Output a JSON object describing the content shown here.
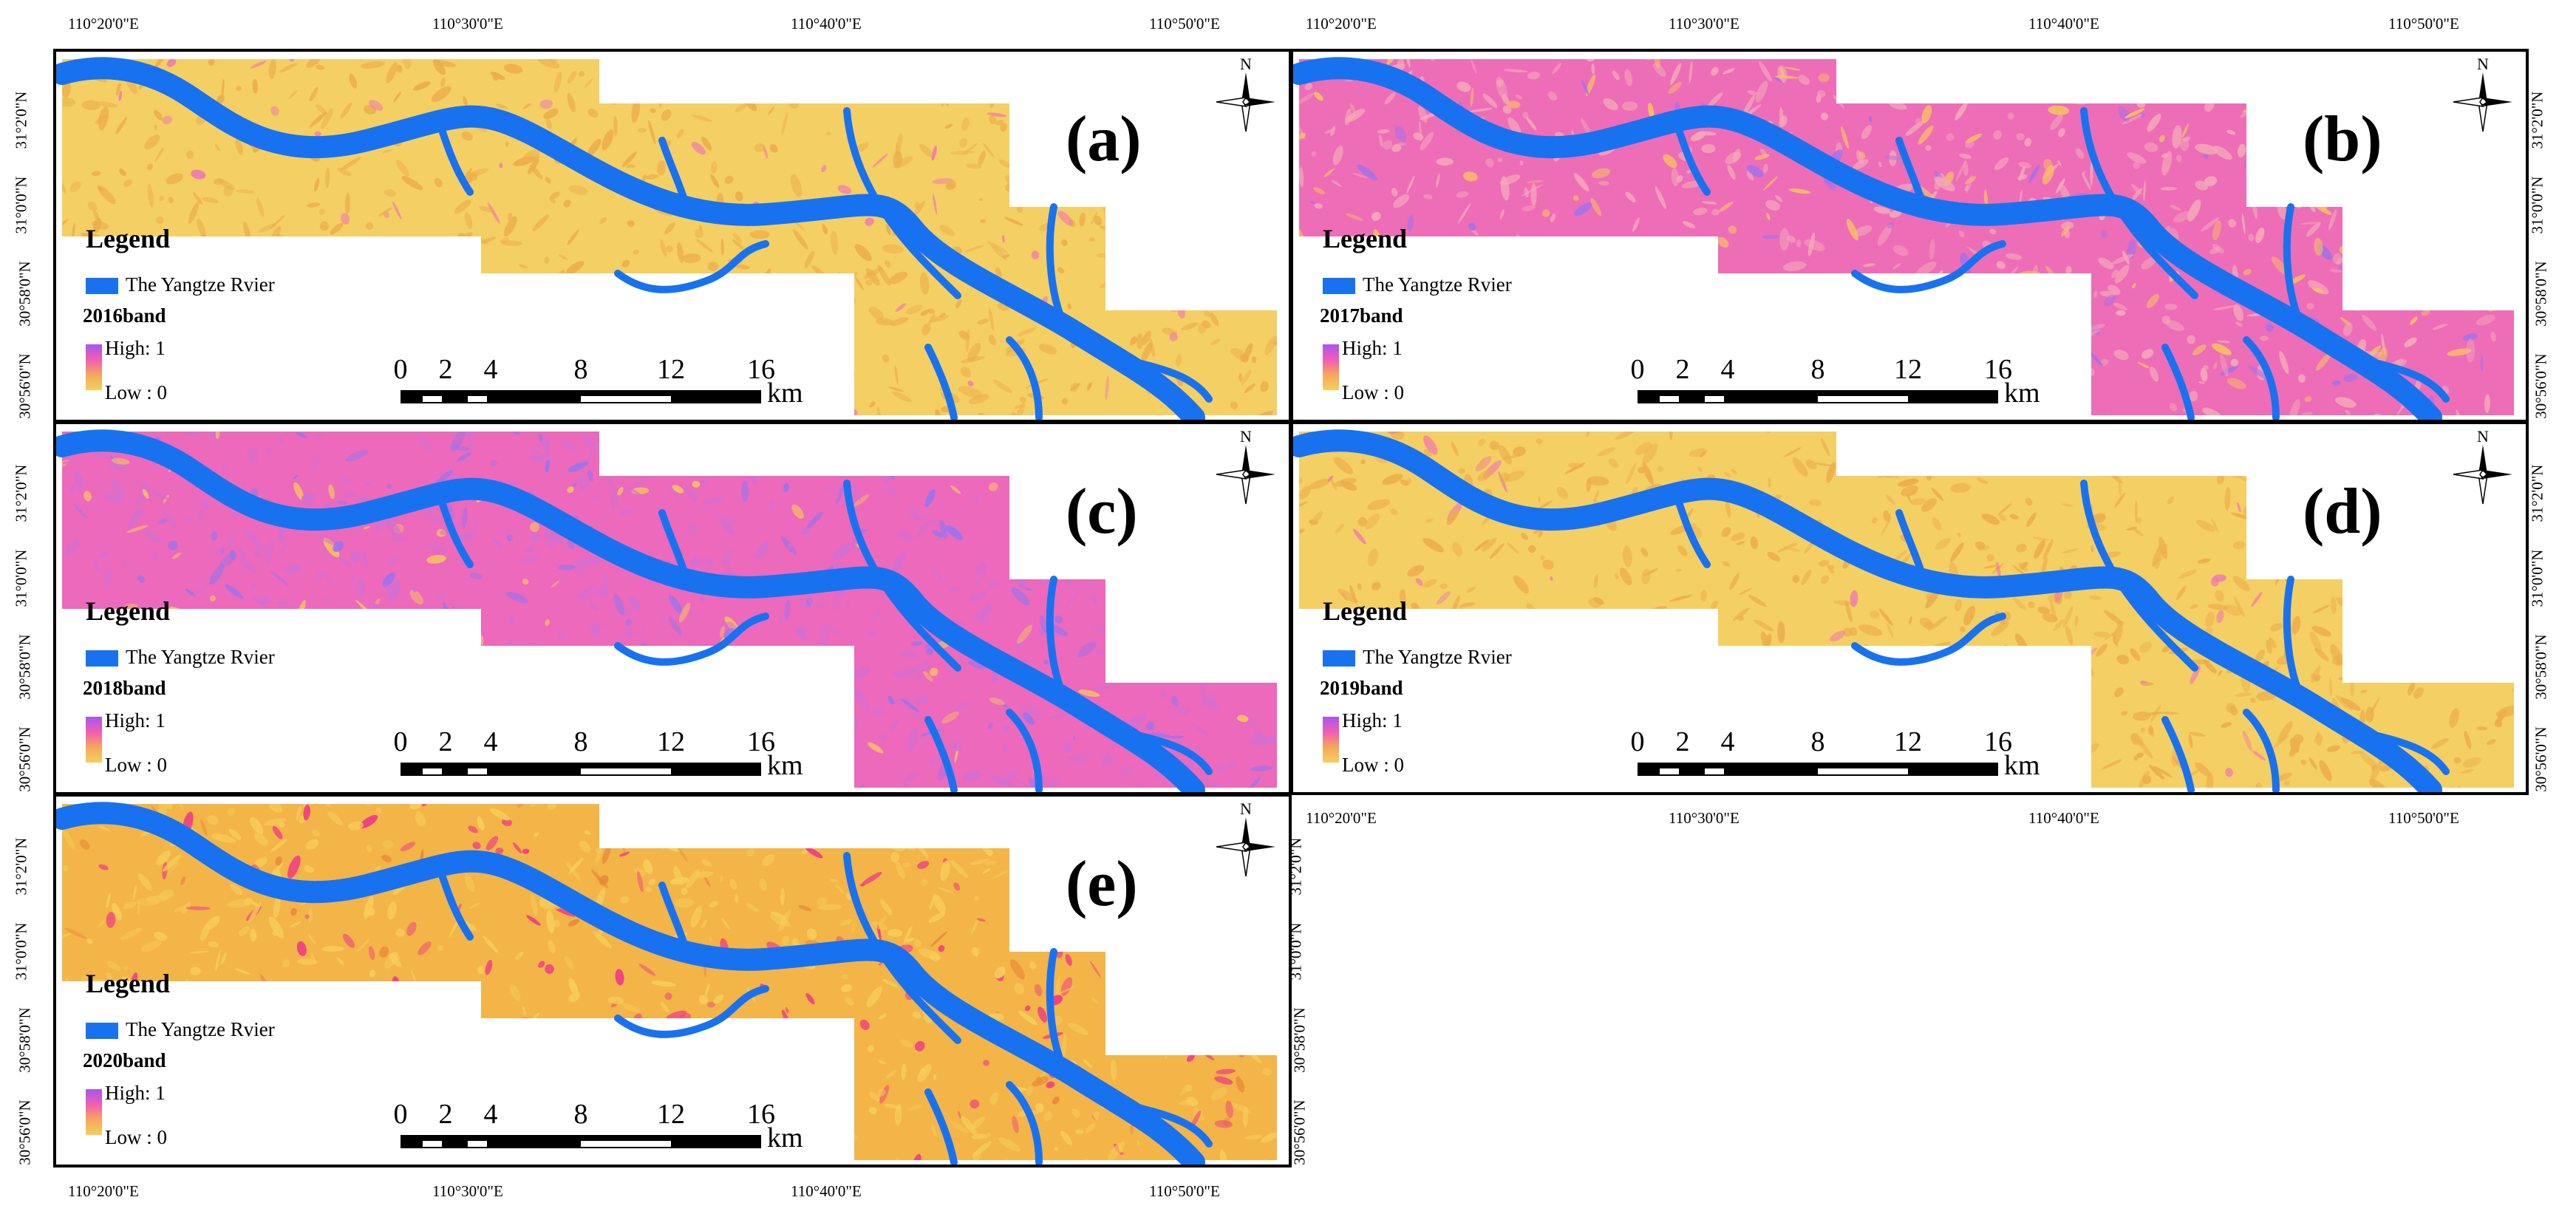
{
  "longitude_labels": [
    "110°20'0\"E",
    "110°30'0\"E",
    "110°40'0\"E",
    "110°50'0\"E"
  ],
  "latitude_labels": [
    "31°2'0\"N",
    "31°0'0\"N",
    "30°58'0\"N",
    "30°56'0\"N"
  ],
  "legend": {
    "title": "Legend",
    "river_label": "The Yangtze Rvier",
    "high_label": "High: 1",
    "low_label": "Low : 0"
  },
  "scale_bar": {
    "ticks": [
      "0",
      "2",
      "4",
      "8",
      "12",
      "16"
    ],
    "unit": "km"
  },
  "north_arrow_label": "N",
  "colors": {
    "river": "#1872f0",
    "high": "#a657f0",
    "mid_high": "#f25cb4",
    "mid_low": "#f5a85a",
    "low": "#f5cf5e"
  },
  "panels": [
    {
      "id": "a",
      "label": "(a)",
      "band": "2016band",
      "tone": "yellow"
    },
    {
      "id": "b",
      "label": "(b)",
      "band": "2017band",
      "tone": "magenta"
    },
    {
      "id": "c",
      "label": "(c)",
      "band": "2018band",
      "tone": "magenta-purple"
    },
    {
      "id": "d",
      "label": "(d)",
      "band": "2019band",
      "tone": "yellow"
    },
    {
      "id": "e",
      "label": "(e)",
      "band": "2020band",
      "tone": "orange"
    }
  ]
}
